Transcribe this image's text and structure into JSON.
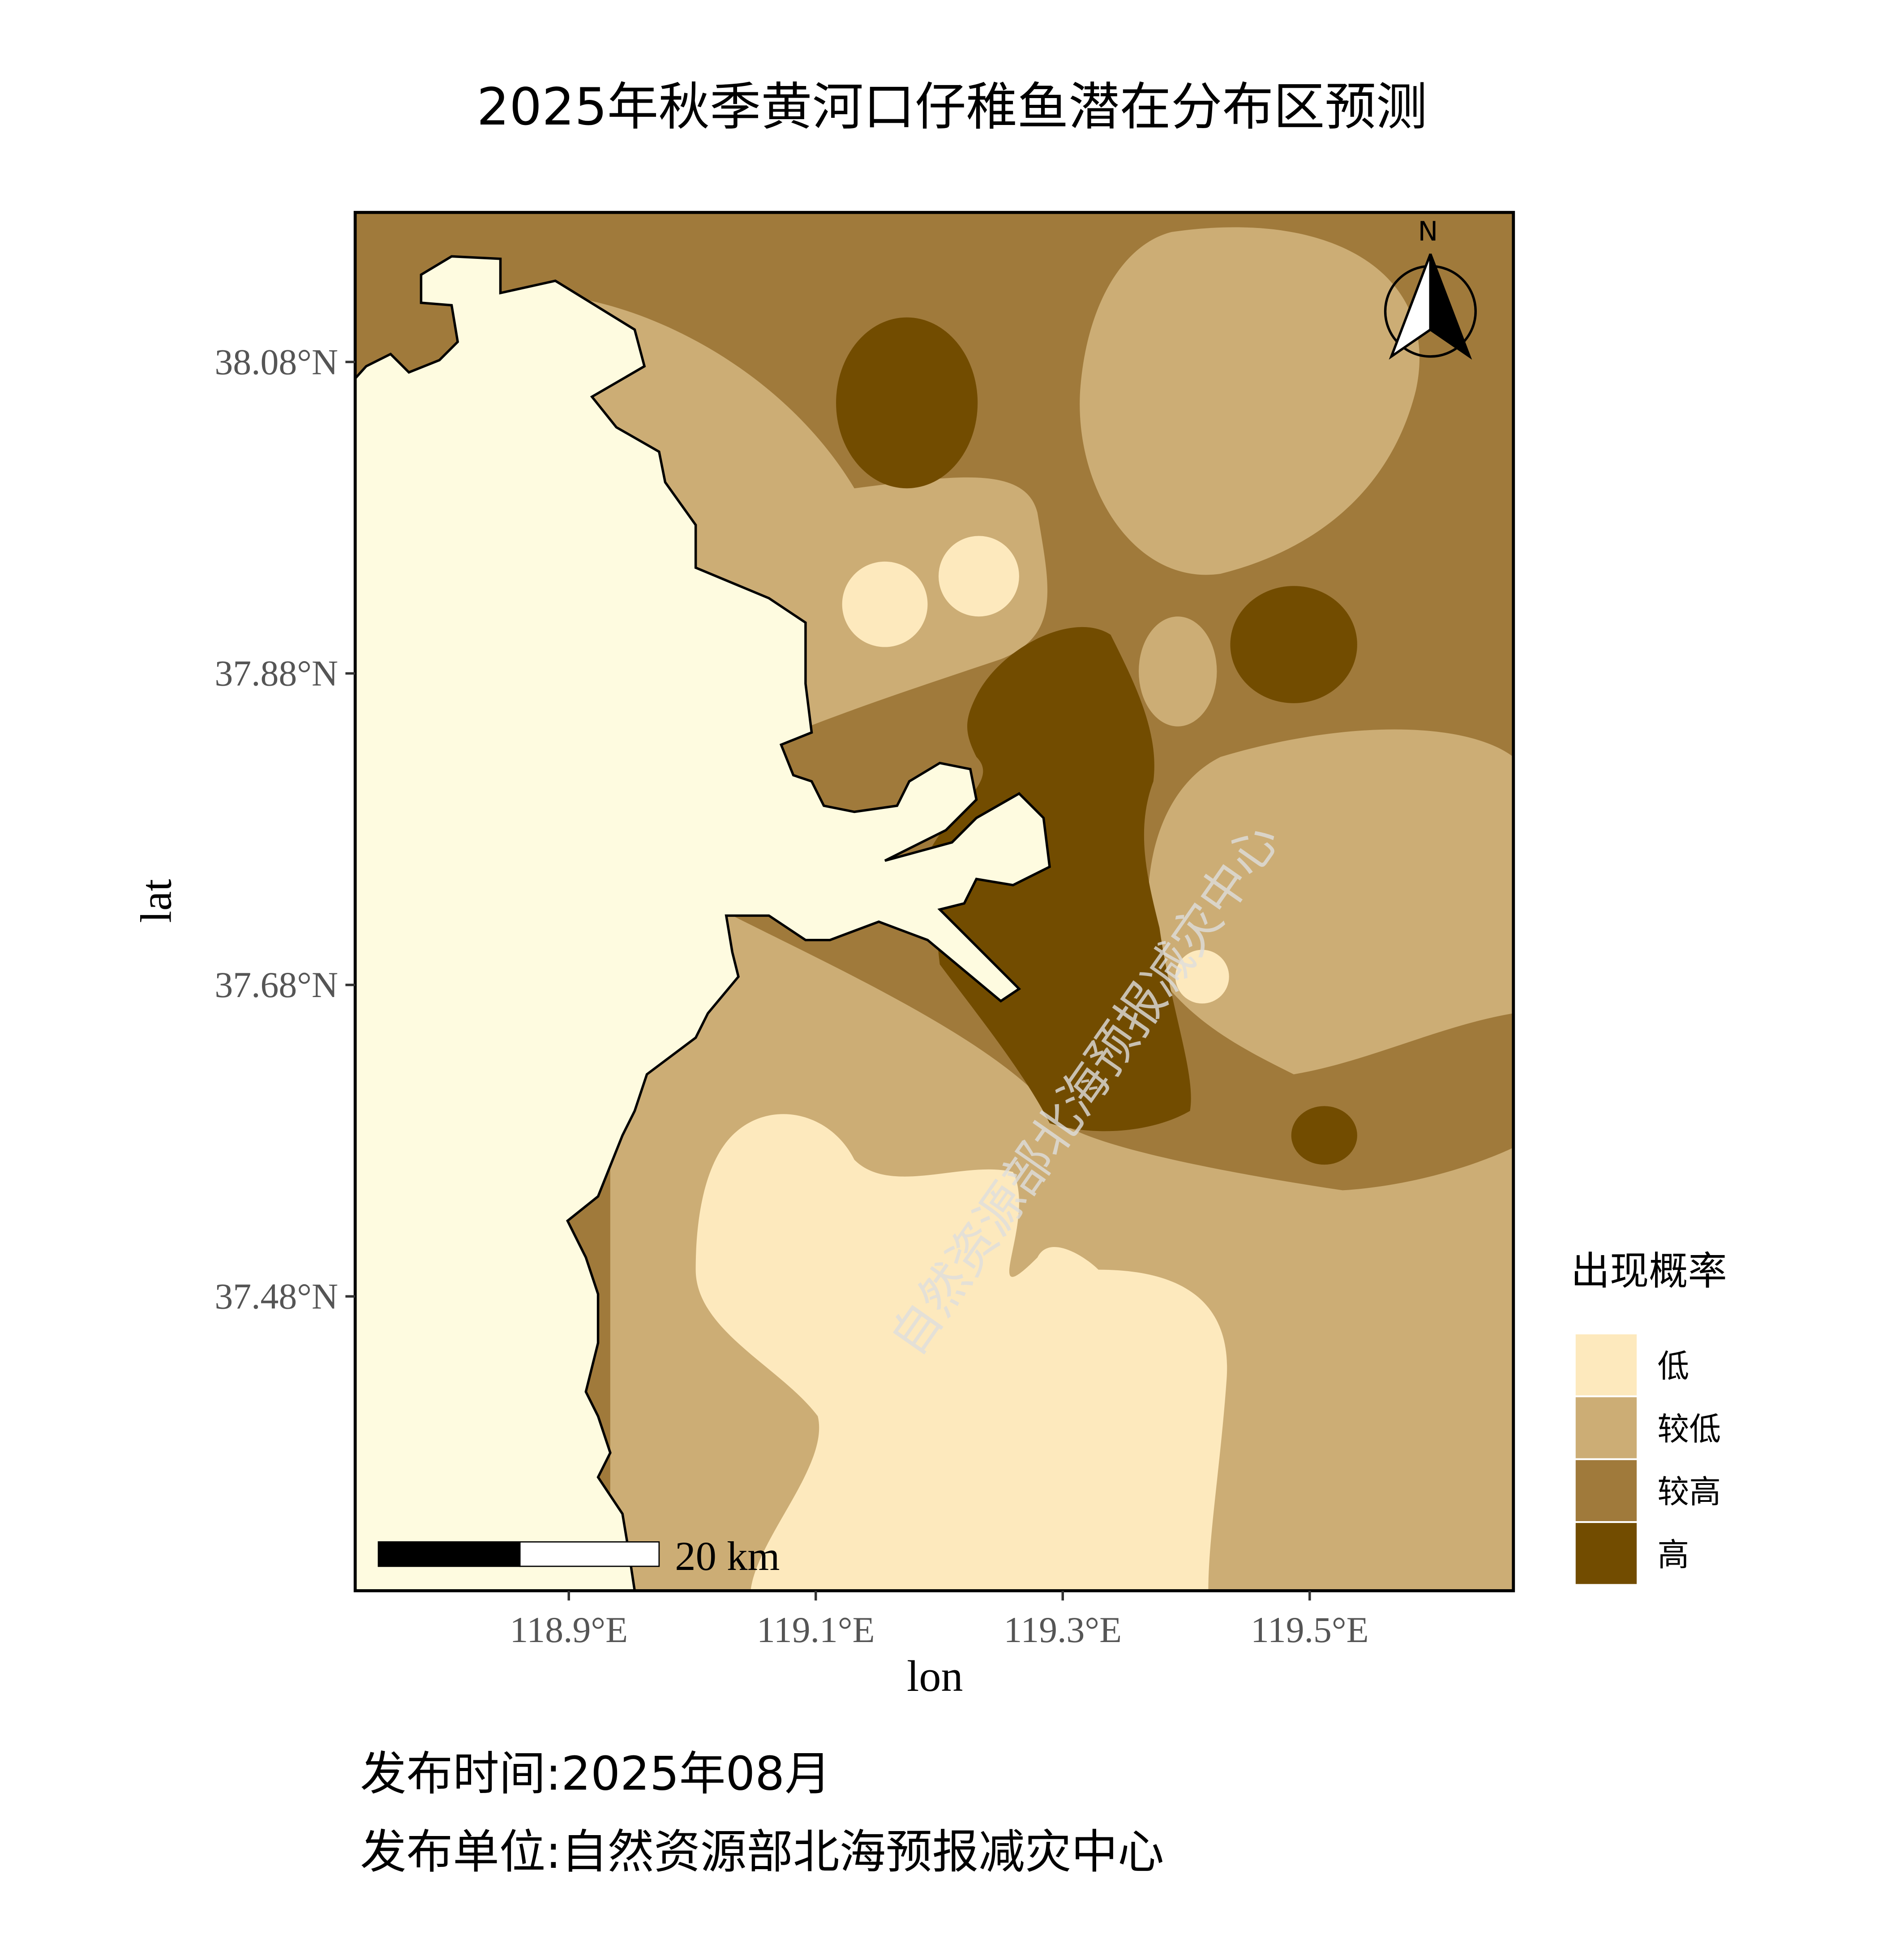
{
  "map": {
    "title": "2025年秋季黄河口仔稚鱼潜在分布区预测",
    "x_label": "lon",
    "y_label": "lat",
    "xlim": [
      118.727,
      119.665
    ],
    "ylim": [
      37.291,
      38.176
    ],
    "xticks": [
      {
        "value": 118.9,
        "label": "118.9°E"
      },
      {
        "value": 119.1,
        "label": "119.1°E"
      },
      {
        "value": 119.3,
        "label": "119.3°E"
      },
      {
        "value": 119.5,
        "label": "119.5°E"
      }
    ],
    "yticks": [
      {
        "value": 37.48,
        "label": "37.48°N"
      },
      {
        "value": 37.68,
        "label": "37.68°N"
      },
      {
        "value": 37.88,
        "label": "37.88°N"
      },
      {
        "value": 38.08,
        "label": "38.08°N"
      }
    ],
    "legend": {
      "title": "出现概率",
      "items": [
        {
          "label": "低",
          "color": "#fde9bd"
        },
        {
          "label": "较低",
          "color": "#ccad75"
        },
        {
          "label": "较高",
          "color": "#a07a3b"
        },
        {
          "label": "高",
          "color": "#724c00"
        }
      ]
    },
    "north_label": "N",
    "scale_label": "20 km",
    "watermark": "自然资源部北海预报减灾中心",
    "footer": [
      "发布时间:2025年08月",
      "发布单位:自然资源部北海预报减灾中心"
    ]
  }
}
